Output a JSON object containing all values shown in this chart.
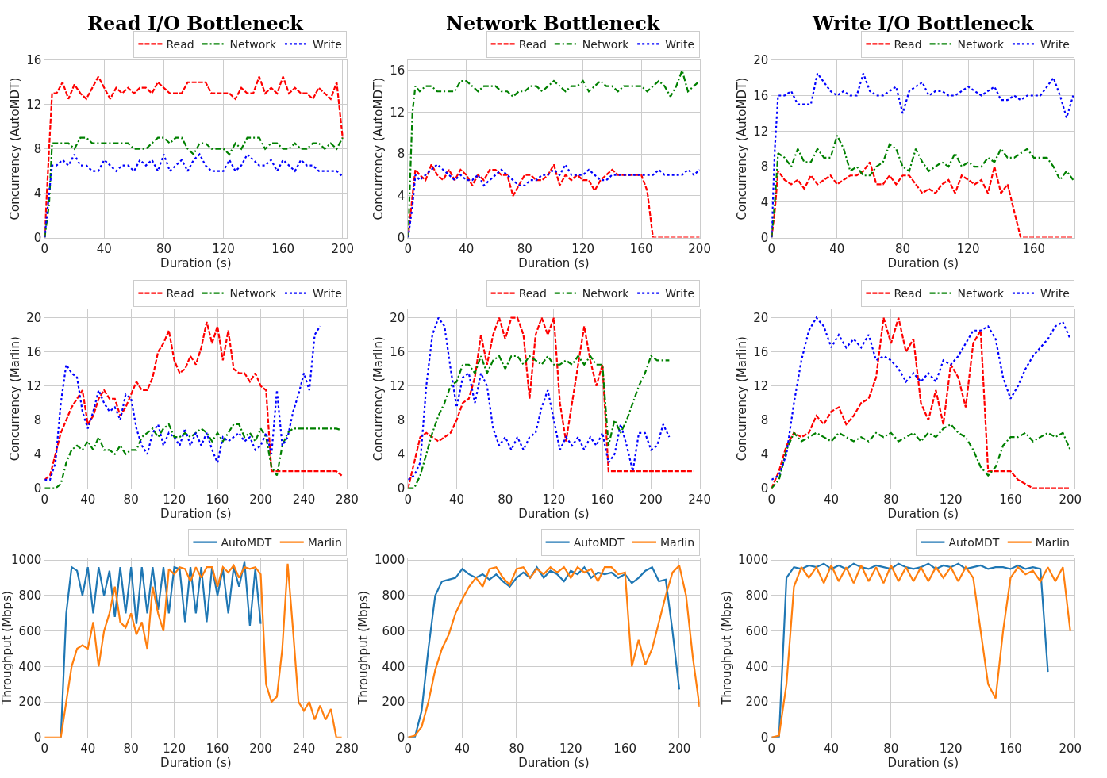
{
  "chart_data": [
    {
      "type": "line",
      "title": "Read I/O Bottleneck",
      "xlabel": "Duration (s)",
      "ylabel": "Concurrency (AutoMDT)",
      "xlim": [
        0,
        203
      ],
      "xticks": [
        0,
        40,
        80,
        120,
        160,
        200
      ],
      "ylim": [
        0,
        16
      ],
      "yticks": [
        0,
        4,
        8,
        12,
        16
      ],
      "grid": true,
      "legend": "top",
      "x": [
        0,
        3,
        5,
        8,
        12,
        16,
        20,
        24,
        28,
        32,
        36,
        40,
        44,
        48,
        52,
        56,
        60,
        64,
        68,
        72,
        76,
        80,
        84,
        88,
        92,
        96,
        100,
        104,
        108,
        112,
        116,
        120,
        124,
        128,
        132,
        136,
        140,
        144,
        148,
        152,
        156,
        160,
        164,
        168,
        172,
        176,
        180,
        184,
        188,
        192,
        196,
        200
      ],
      "series": [
        {
          "name": "Read",
          "color": "#ff0000",
          "line_style": "dashed",
          "values": [
            0,
            8,
            13,
            13,
            14,
            12.5,
            13.8,
            13,
            12.5,
            13.5,
            14.5,
            13.5,
            12.5,
            13.5,
            13,
            13.5,
            13,
            13.5,
            13.5,
            13,
            14,
            13.5,
            13,
            13,
            13,
            14,
            14,
            14,
            14,
            13,
            13,
            13,
            13,
            12.5,
            13.5,
            13,
            13,
            14.5,
            13,
            13.5,
            13,
            14.5,
            13,
            13.5,
            13,
            13,
            12.5,
            13.5,
            13,
            12.5,
            14,
            9
          ]
        },
        {
          "name": "Network",
          "color": "#008000",
          "line_style": "dashdot",
          "values": [
            0,
            3,
            8.5,
            8.5,
            8.5,
            8.5,
            8,
            9,
            9,
            8.5,
            8.5,
            8.5,
            8.5,
            8.5,
            8.5,
            8.5,
            8,
            8,
            8,
            8.5,
            9,
            9,
            8.5,
            9,
            9,
            8,
            7.5,
            8.5,
            8.5,
            8,
            8,
            8,
            7.5,
            8.5,
            8,
            9,
            9,
            9,
            8,
            8.5,
            8.5,
            8,
            8,
            8.5,
            8,
            8,
            8.5,
            8.5,
            8,
            8.5,
            8,
            9
          ]
        },
        {
          "name": "Write",
          "color": "#0000ff",
          "line_style": "dotted",
          "values": [
            0,
            4,
            6.5,
            6.5,
            7,
            6.5,
            7.5,
            6.5,
            6.5,
            6,
            6,
            7,
            6.5,
            6,
            6.5,
            6.5,
            6,
            7,
            6.5,
            7,
            6,
            7.5,
            6,
            6.5,
            7,
            6,
            7,
            7.5,
            6.5,
            6,
            6,
            6,
            7,
            6,
            6.5,
            7.5,
            7,
            6.5,
            6.5,
            7,
            6,
            7,
            6.5,
            6,
            7,
            6.5,
            6.5,
            6,
            6,
            6,
            6,
            5.5
          ]
        }
      ]
    },
    {
      "type": "line",
      "title": "Network Bottleneck",
      "xlabel": "Duration (s)",
      "ylabel": "Concurrency (AutoMDT)",
      "xlim": [
        0,
        200
      ],
      "xticks": [
        0,
        40,
        80,
        120,
        160,
        200
      ],
      "ylim": [
        0,
        17
      ],
      "yticks": [
        0,
        4,
        8,
        12,
        16
      ],
      "grid": true,
      "legend": "top",
      "x": [
        0,
        3,
        5,
        8,
        12,
        16,
        20,
        24,
        28,
        32,
        36,
        40,
        44,
        48,
        52,
        56,
        60,
        64,
        68,
        72,
        76,
        80,
        84,
        88,
        92,
        96,
        100,
        104,
        108,
        112,
        116,
        120,
        124,
        128,
        132,
        136,
        140,
        144,
        148,
        152,
        156,
        160,
        164,
        168,
        172,
        176,
        180,
        184,
        188,
        192,
        196,
        200
      ],
      "series": [
        {
          "name": "Read",
          "color": "#ff0000",
          "line_style": "dashed",
          "values": [
            0,
            4,
            6.5,
            6,
            5.5,
            7,
            6,
            5.5,
            6.5,
            5.5,
            6.5,
            6,
            5,
            6,
            5.5,
            6.5,
            6.5,
            6,
            6,
            4,
            5,
            6,
            6,
            5.5,
            5.5,
            6,
            7,
            5,
            6,
            5.5,
            6,
            5.5,
            5.5,
            4.5,
            5.5,
            6,
            6.5,
            6,
            6,
            6,
            6,
            6,
            4.5,
            0,
            0,
            0,
            0,
            0,
            0,
            0,
            0,
            0
          ]
        },
        {
          "name": "Network",
          "color": "#008000",
          "line_style": "dashdot",
          "values": [
            0,
            12,
            14.5,
            14,
            14.5,
            14.5,
            14,
            14,
            14,
            14,
            15,
            15,
            14.5,
            14,
            14.5,
            14.5,
            14.5,
            14,
            14,
            13.5,
            14,
            14,
            14.5,
            14.5,
            14,
            14.5,
            15,
            14.5,
            14,
            14.5,
            14.5,
            15,
            14,
            14.5,
            15,
            14.5,
            14.5,
            14,
            14.5,
            14.5,
            14.5,
            14.5,
            14,
            14.5,
            15,
            14.5,
            13.5,
            14.5,
            16,
            14,
            14.5,
            15
          ]
        },
        {
          "name": "Write",
          "color": "#0000ff",
          "line_style": "dotted",
          "values": [
            0,
            3,
            6,
            5.5,
            6,
            6.5,
            7,
            6.5,
            6,
            5.5,
            6,
            5.5,
            5.5,
            6,
            5,
            5.5,
            6,
            6.5,
            6,
            5.5,
            5,
            5,
            5.5,
            5.5,
            6,
            6,
            6.5,
            6,
            7,
            6,
            6,
            6,
            6.5,
            6,
            5.5,
            5.5,
            6,
            6,
            6,
            6,
            6,
            6,
            6,
            6,
            6.5,
            6,
            6,
            6,
            6,
            6.5,
            6,
            6.5
          ]
        }
      ]
    },
    {
      "type": "line",
      "title": "Write I/O Bottleneck",
      "xlabel": "Duration (s)",
      "ylabel": "Concurrency (AutoMDT)",
      "xlim": [
        0,
        185
      ],
      "xticks": [
        0,
        40,
        80,
        120,
        160
      ],
      "ylim": [
        0,
        20
      ],
      "yticks": [
        0,
        4,
        8,
        12,
        16,
        20
      ],
      "grid": true,
      "legend": "top",
      "x": [
        0,
        2,
        4,
        8,
        12,
        16,
        20,
        24,
        28,
        32,
        36,
        40,
        44,
        48,
        52,
        56,
        60,
        64,
        68,
        72,
        76,
        80,
        84,
        88,
        92,
        96,
        100,
        104,
        108,
        112,
        116,
        120,
        124,
        128,
        132,
        136,
        140,
        144,
        148,
        152,
        156,
        160,
        164,
        168,
        172,
        176,
        180,
        184
      ],
      "series": [
        {
          "name": "Read",
          "color": "#ff0000",
          "line_style": "dashed",
          "values": [
            0,
            3,
            7.5,
            6.5,
            6,
            6.5,
            5.5,
            7,
            6,
            6.5,
            7,
            6,
            6.5,
            7,
            7,
            7.5,
            8.5,
            6,
            6,
            7,
            6,
            7,
            7,
            6,
            5,
            5.5,
            5,
            6,
            6.5,
            5,
            7,
            6.5,
            6,
            6.5,
            5,
            8,
            5,
            6,
            3,
            0,
            0,
            0,
            0,
            0,
            0,
            0,
            0,
            0
          ]
        },
        {
          "name": "Network",
          "color": "#008000",
          "line_style": "dashdot",
          "values": [
            0,
            4,
            9.5,
            9,
            8,
            10,
            8.5,
            8.5,
            10,
            9,
            9,
            11.5,
            10,
            7.5,
            8,
            7,
            7,
            8,
            8.5,
            10.5,
            10,
            8,
            7.5,
            10,
            8.5,
            7.5,
            8,
            8.5,
            8,
            9.5,
            8,
            8.5,
            8,
            8,
            9,
            8.5,
            10,
            9,
            9,
            9.5,
            10,
            9,
            9,
            9,
            8,
            6.5,
            7.5,
            6.5
          ]
        },
        {
          "name": "Write",
          "color": "#0000ff",
          "line_style": "dotted",
          "values": [
            0,
            10,
            16,
            16,
            16.5,
            15,
            15,
            15,
            18.5,
            17.5,
            16.5,
            16,
            16.5,
            16,
            16,
            18.5,
            16.5,
            16,
            16,
            16.5,
            17,
            14,
            16.5,
            17,
            17.5,
            16,
            16.5,
            16.5,
            16,
            16,
            16.5,
            17,
            16.5,
            16,
            16.5,
            17,
            15.5,
            15.5,
            16,
            15.5,
            16,
            16,
            16,
            17,
            18,
            16,
            13.5,
            16
          ]
        }
      ]
    },
    {
      "type": "line",
      "xlabel": "Duration (s)",
      "ylabel": "Concurrency (Marlin)",
      "xlim": [
        0,
        280
      ],
      "xticks": [
        0,
        40,
        80,
        120,
        160,
        200,
        240,
        280
      ],
      "ylim": [
        0,
        21
      ],
      "yticks": [
        0,
        4,
        8,
        12,
        16,
        20
      ],
      "grid": true,
      "legend": "top",
      "x": [
        0,
        5,
        10,
        15,
        20,
        25,
        30,
        35,
        40,
        45,
        50,
        55,
        60,
        65,
        70,
        75,
        80,
        85,
        90,
        95,
        100,
        105,
        110,
        115,
        120,
        125,
        130,
        135,
        140,
        145,
        150,
        155,
        160,
        165,
        170,
        175,
        180,
        185,
        190,
        195,
        200,
        205,
        210,
        215,
        220,
        225,
        230,
        235,
        240,
        245,
        250,
        255,
        260,
        265,
        270,
        275
      ],
      "series": [
        {
          "name": "Read",
          "color": "#ff0000",
          "line_style": "dashed",
          "values": [
            1,
            1.5,
            4,
            6.5,
            8,
            9.5,
            10.5,
            11.5,
            7.5,
            8.5,
            10.5,
            11.5,
            10.5,
            10.5,
            8.5,
            9.5,
            11,
            12.5,
            11.5,
            11.5,
            13,
            16,
            17,
            18.5,
            15,
            13.5,
            14,
            15.5,
            14.5,
            16.5,
            19.5,
            17,
            19,
            15,
            18.5,
            14,
            13.5,
            13.5,
            12.5,
            13.5,
            12,
            11.5,
            2,
            2,
            2,
            2,
            2,
            2,
            2,
            2,
            2,
            2,
            2,
            2,
            2,
            1.5
          ]
        },
        {
          "name": "Network",
          "color": "#008000",
          "line_style": "dashdot",
          "values": [
            0,
            0,
            0,
            0.5,
            3,
            4.5,
            5,
            4.5,
            5.5,
            4.5,
            6,
            4.5,
            4.5,
            4,
            5,
            4,
            4.5,
            4.5,
            6,
            6.5,
            7,
            6,
            7,
            7.5,
            6,
            6,
            6.5,
            6,
            6.5,
            7,
            6.5,
            5.5,
            6.5,
            5.5,
            6.5,
            7.5,
            7.5,
            6,
            6.5,
            5.5,
            7,
            6,
            2.5,
            1.5,
            5,
            6.5,
            7,
            7,
            7,
            7,
            7,
            7,
            7,
            7,
            7,
            6.8
          ]
        },
        {
          "name": "Write",
          "color": "#0000ff",
          "line_style": "dotted",
          "values": [
            1,
            1,
            3,
            10,
            14.5,
            13.5,
            13,
            9,
            7,
            9,
            11.5,
            10,
            9,
            9.5,
            8,
            11,
            10.5,
            7,
            5,
            4,
            6.5,
            7.5,
            5,
            6.5,
            6,
            5,
            7,
            5,
            6.5,
            5,
            6.5,
            4.5,
            3,
            6,
            5.5,
            6,
            6.5,
            5.5,
            6,
            4.5,
            5,
            6.5,
            4,
            11.5,
            5,
            6,
            9,
            11,
            13.5,
            11.5,
            18,
            19,
            null,
            null,
            null,
            null
          ]
        }
      ]
    },
    {
      "type": "line",
      "xlabel": "Duration (s)",
      "ylabel": "Concurrency (Marlin)",
      "xlim": [
        0,
        240
      ],
      "xticks": [
        0,
        40,
        80,
        120,
        160,
        200,
        240
      ],
      "ylim": [
        0,
        21
      ],
      "yticks": [
        0,
        4,
        8,
        12,
        16,
        20
      ],
      "grid": true,
      "legend": "top",
      "x": [
        0,
        5,
        10,
        15,
        20,
        25,
        30,
        35,
        40,
        45,
        50,
        55,
        60,
        65,
        70,
        75,
        80,
        85,
        90,
        95,
        100,
        105,
        110,
        115,
        120,
        125,
        130,
        135,
        140,
        145,
        150,
        155,
        160,
        165,
        170,
        175,
        180,
        185,
        190,
        195,
        200,
        205,
        210,
        215,
        220,
        225,
        230,
        235
      ],
      "series": [
        {
          "name": "Read",
          "color": "#ff0000",
          "line_style": "dashed",
          "values": [
            0,
            3,
            6,
            6.5,
            6,
            5.5,
            6,
            6.5,
            8,
            10,
            10.5,
            13,
            18,
            14.5,
            18,
            20,
            17.5,
            20,
            20,
            18,
            10.5,
            18,
            20,
            18,
            20,
            10,
            5.5,
            10,
            14.5,
            19,
            15,
            12,
            14.5,
            2,
            2,
            2,
            2,
            2,
            2,
            2,
            2,
            2,
            2,
            2,
            2,
            2,
            2,
            2
          ]
        },
        {
          "name": "Network",
          "color": "#008000",
          "line_style": "dashdot",
          "values": [
            0,
            0,
            1.5,
            4,
            6.5,
            8.5,
            10,
            12,
            12.5,
            14.5,
            14.5,
            13.5,
            15.5,
            13.5,
            15,
            15.5,
            14,
            15.5,
            15.5,
            14.5,
            15.5,
            15,
            14.5,
            15.5,
            14.5,
            14.5,
            15,
            14.5,
            15.5,
            14.5,
            15.5,
            14.5,
            14.5,
            5,
            8,
            6.5,
            8,
            10,
            12,
            13.5,
            15.5,
            15,
            15,
            15,
            null,
            null,
            null,
            null
          ]
        },
        {
          "name": "Write",
          "color": "#0000ff",
          "line_style": "dotted",
          "values": [
            1,
            1.5,
            3,
            12,
            18,
            20,
            19,
            14,
            9.5,
            13,
            13.5,
            10,
            13.5,
            12,
            7,
            5,
            6,
            4.5,
            6,
            4.5,
            6,
            6.5,
            9.5,
            11.5,
            8,
            4.5,
            6,
            5,
            6,
            4.5,
            6,
            5,
            6.5,
            3,
            4,
            7.5,
            5,
            2,
            6.5,
            6.5,
            4.5,
            5,
            7.5,
            6,
            null,
            null,
            null,
            null
          ]
        }
      ]
    },
    {
      "type": "line",
      "xlabel": "Duration (s)",
      "ylabel": "Concurrency (Marlin)",
      "xlim": [
        0,
        203
      ],
      "xticks": [
        0,
        40,
        80,
        120,
        160,
        200
      ],
      "ylim": [
        0,
        21
      ],
      "yticks": [
        0,
        4,
        8,
        12,
        16,
        20
      ],
      "grid": true,
      "legend": "top",
      "x": [
        0,
        5,
        10,
        15,
        20,
        25,
        30,
        35,
        40,
        45,
        50,
        55,
        60,
        65,
        70,
        75,
        80,
        85,
        90,
        95,
        100,
        105,
        110,
        115,
        120,
        125,
        130,
        135,
        140,
        145,
        150,
        155,
        160,
        165,
        170,
        175,
        180,
        185,
        190,
        195,
        200
      ],
      "series": [
        {
          "name": "Read",
          "color": "#ff0000",
          "line_style": "dashed",
          "values": [
            0,
            2,
            5,
            6.5,
            6,
            6.5,
            8.5,
            7.5,
            9,
            9.5,
            7.5,
            8.5,
            10,
            10.5,
            13,
            20,
            17,
            20,
            16,
            17.5,
            10,
            8,
            11.5,
            7.5,
            14.5,
            13,
            9.5,
            17,
            18.5,
            2,
            2,
            2,
            2,
            1,
            0.5,
            0,
            0,
            0,
            0,
            0,
            0
          ]
        },
        {
          "name": "Network",
          "color": "#008000",
          "line_style": "dashdot",
          "values": [
            0,
            1,
            4.5,
            6.5,
            5.5,
            6,
            6.5,
            6,
            5.5,
            6.5,
            6,
            5.5,
            6,
            5.5,
            6.5,
            6,
            6.5,
            5.5,
            6,
            6.5,
            5.5,
            6.5,
            6,
            7,
            7.5,
            6.5,
            6,
            4.5,
            2.5,
            1.5,
            2.5,
            5,
            6,
            6,
            6.5,
            5.5,
            6,
            6.5,
            6,
            6.5,
            4.5
          ]
        },
        {
          "name": "Write",
          "color": "#0000ff",
          "line_style": "dotted",
          "values": [
            1,
            1.5,
            4,
            10,
            15,
            18.5,
            20,
            19,
            16.5,
            18,
            16.5,
            17.5,
            16.5,
            18,
            15,
            15.5,
            15,
            14,
            12.5,
            13.5,
            12.5,
            13.5,
            12.5,
            15,
            14.5,
            15.5,
            17,
            18.5,
            18.5,
            19,
            17.5,
            13,
            10.5,
            12,
            14,
            15.5,
            16.5,
            17.5,
            19,
            19.5,
            17.5
          ]
        }
      ]
    },
    {
      "type": "line",
      "xlabel": "Duration (s)",
      "ylabel": "Throughput (Mbps)",
      "xlim": [
        0,
        280
      ],
      "xticks": [
        0,
        40,
        80,
        120,
        160,
        200,
        240,
        280
      ],
      "ylim": [
        0,
        1010
      ],
      "yticks": [
        0,
        200,
        400,
        600,
        800,
        1000
      ],
      "grid": true,
      "legend": "top",
      "x": [
        0,
        5,
        10,
        15,
        20,
        25,
        30,
        35,
        40,
        45,
        50,
        55,
        60,
        65,
        70,
        75,
        80,
        85,
        90,
        95,
        100,
        105,
        110,
        115,
        120,
        125,
        130,
        135,
        140,
        145,
        150,
        155,
        160,
        165,
        170,
        175,
        180,
        185,
        190,
        195,
        200,
        205,
        210,
        215,
        220,
        225,
        230,
        235,
        240,
        245,
        250,
        255,
        260,
        265,
        270,
        275
      ],
      "series": [
        {
          "name": "AutoMDT",
          "color": "#1f77b4",
          "line_style": "solid",
          "values": [
            null,
            null,
            null,
            0,
            700,
            960,
            940,
            800,
            960,
            700,
            960,
            800,
            940,
            680,
            960,
            700,
            960,
            640,
            960,
            700,
            960,
            720,
            960,
            700,
            960,
            950,
            650,
            960,
            700,
            960,
            650,
            960,
            800,
            950,
            700,
            960,
            850,
            990,
            630,
            950,
            640,
            null,
            null,
            null,
            null,
            null,
            null,
            null,
            null,
            null,
            null,
            null,
            null,
            null,
            null,
            null
          ]
        },
        {
          "name": "Marlin",
          "color": "#ff7f0e",
          "line_style": "solid",
          "values": [
            0,
            0,
            0,
            0,
            200,
            400,
            500,
            520,
            500,
            650,
            400,
            600,
            700,
            850,
            650,
            620,
            700,
            580,
            650,
            500,
            850,
            700,
            600,
            950,
            920,
            960,
            950,
            880,
            960,
            900,
            960,
            960,
            850,
            960,
            930,
            970,
            900,
            960,
            950,
            960,
            920,
            300,
            200,
            230,
            500,
            980,
            600,
            200,
            150,
            200,
            100,
            180,
            100,
            160,
            0,
            0
          ]
        }
      ]
    },
    {
      "type": "line",
      "xlabel": "Duration (s)",
      "ylabel": "Throughput (Mbps)",
      "xlim": [
        0,
        215
      ],
      "xticks": [
        0,
        40,
        80,
        120,
        160,
        200
      ],
      "ylim": [
        0,
        1010
      ],
      "yticks": [
        0,
        200,
        400,
        600,
        800,
        1000
      ],
      "grid": true,
      "legend": "top",
      "x": [
        0,
        5,
        10,
        15,
        20,
        25,
        30,
        35,
        40,
        45,
        50,
        55,
        60,
        65,
        70,
        75,
        80,
        85,
        90,
        95,
        100,
        105,
        110,
        115,
        120,
        125,
        130,
        135,
        140,
        145,
        150,
        155,
        160,
        165,
        170,
        175,
        180,
        185,
        190,
        195,
        200,
        205,
        210,
        215
      ],
      "series": [
        {
          "name": "AutoMDT",
          "color": "#1f77b4",
          "line_style": "solid",
          "values": [
            0,
            0,
            150,
            500,
            800,
            880,
            890,
            900,
            950,
            920,
            900,
            920,
            890,
            920,
            880,
            850,
            900,
            930,
            900,
            960,
            900,
            940,
            920,
            880,
            940,
            920,
            960,
            900,
            930,
            920,
            930,
            900,
            920,
            870,
            900,
            940,
            960,
            880,
            890,
            600,
            270,
            null,
            null,
            null
          ]
        },
        {
          "name": "Marlin",
          "color": "#ff7f0e",
          "line_style": "solid",
          "values": [
            0,
            10,
            60,
            200,
            380,
            500,
            580,
            700,
            780,
            850,
            900,
            850,
            950,
            960,
            900,
            860,
            950,
            960,
            900,
            950,
            920,
            960,
            930,
            960,
            900,
            960,
            930,
            950,
            880,
            960,
            960,
            920,
            930,
            400,
            550,
            410,
            500,
            650,
            800,
            930,
            970,
            800,
            450,
            170
          ]
        }
      ]
    },
    {
      "type": "line",
      "xlabel": "Duration (s)",
      "ylabel": "Throughput (Mbps)",
      "xlim": [
        0,
        203
      ],
      "xticks": [
        0,
        40,
        80,
        120,
        160,
        200
      ],
      "ylim": [
        0,
        1010
      ],
      "yticks": [
        0,
        200,
        400,
        600,
        800,
        1000
      ],
      "grid": true,
      "legend": "top",
      "x": [
        0,
        5,
        10,
        15,
        20,
        25,
        30,
        35,
        40,
        45,
        50,
        55,
        60,
        65,
        70,
        75,
        80,
        85,
        90,
        95,
        100,
        105,
        110,
        115,
        120,
        125,
        130,
        135,
        140,
        145,
        150,
        155,
        160,
        165,
        170,
        175,
        180,
        185,
        190,
        195,
        200
      ],
      "series": [
        {
          "name": "AutoMDT",
          "color": "#1f77b4",
          "line_style": "solid",
          "values": [
            0,
            0,
            900,
            960,
            950,
            970,
            960,
            980,
            950,
            970,
            950,
            980,
            960,
            950,
            970,
            960,
            950,
            980,
            960,
            950,
            960,
            980,
            950,
            970,
            960,
            980,
            950,
            960,
            970,
            950,
            960,
            960,
            950,
            970,
            950,
            960,
            950,
            370,
            null,
            null,
            null
          ]
        },
        {
          "name": "Marlin",
          "color": "#ff7f0e",
          "line_style": "solid",
          "values": [
            0,
            10,
            300,
            850,
            960,
            900,
            960,
            870,
            970,
            880,
            960,
            870,
            970,
            880,
            960,
            870,
            970,
            880,
            960,
            880,
            960,
            880,
            960,
            900,
            960,
            880,
            960,
            900,
            600,
            300,
            220,
            600,
            900,
            960,
            920,
            940,
            880,
            960,
            880,
            960,
            600
          ]
        }
      ]
    }
  ]
}
